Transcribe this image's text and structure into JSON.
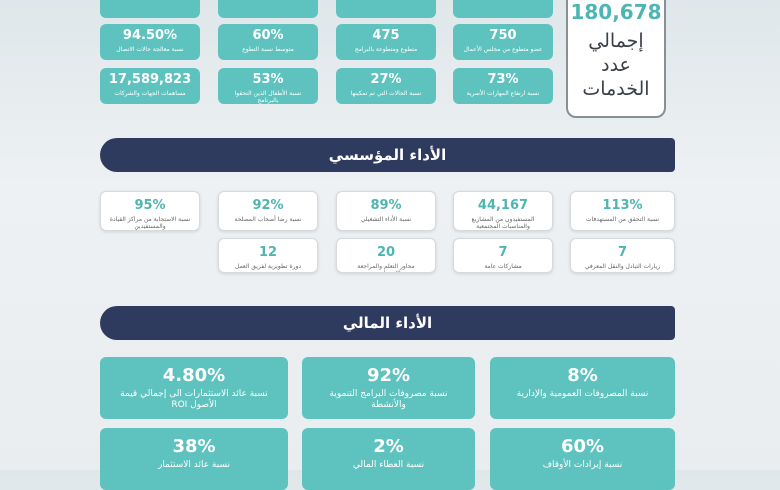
{
  "top_stats": {
    "items": [
      {
        "value": "750",
        "label": "عضو متطوع من مجلس الأعمال"
      },
      {
        "value": "475",
        "label": "متطوع ومتطوعة بالبرامج"
      },
      {
        "value": "60%",
        "label": "متوسط نسبة التطوع"
      },
      {
        "value": "94.50%",
        "label": "نسبة معالجة حالات الاتصال"
      },
      {
        "value": "73%",
        "label": "نسبة ارتفاع المهارات الأسرية"
      },
      {
        "value": "27%",
        "label": "نسبة الحالات التي تم تمكينها"
      },
      {
        "value": "53%",
        "label": "نسبة الأطفال الذين التحقوا بالبرنامج"
      },
      {
        "value": "17,589,823",
        "label": "مساهمات الجهات والشركات"
      }
    ]
  },
  "total_services": {
    "value": "180,678",
    "label": "إجمالي عدد الخدمات"
  },
  "institutional": {
    "title": "الأداء المؤسسي",
    "items": [
      {
        "value": "113%",
        "label": "نسبة التحقق من المستهدفات"
      },
      {
        "value": "44,167",
        "label": "المستفيدون من المشاريع والمناسبات المجتمعية"
      },
      {
        "value": "89%",
        "label": "نسبة الأداء التشغيلي"
      },
      {
        "value": "92%",
        "label": "نسبة رضا أصحاب المصلحة"
      },
      {
        "value": "95%",
        "label": "نسبة الاستجابة من مراكز القيادة والمستفيدين"
      },
      {
        "value": "7",
        "label": "زيارات التبادل والنقل المعرفي"
      },
      {
        "value": "7",
        "label": "مشاركات عامة"
      },
      {
        "value": "20",
        "label": "محاور التعلم والمراجعة الاستراتيجية"
      },
      {
        "value": "12",
        "label": "دورة تطويرية لفريق العمل"
      }
    ]
  },
  "financial": {
    "title": "الأداء المالي",
    "items": [
      {
        "value": "8%",
        "label": "نسبة المصروفات العمومية والإدارية"
      },
      {
        "value": "92%",
        "label": "نسبة مصروفات البرامج التنموية والأنشطة"
      },
      {
        "value": "4.80%",
        "label": "نسبة عائد الاستثمارات الى إجمالي قيمة الأصول ROI"
      },
      {
        "value": "60%",
        "label": "نسبة إيرادات الأوقاف"
      },
      {
        "value": "2%",
        "label": "نسبة العطاء المالي"
      },
      {
        "value": "38%",
        "label": "نسبة عائد الاستثمار"
      }
    ]
  }
}
